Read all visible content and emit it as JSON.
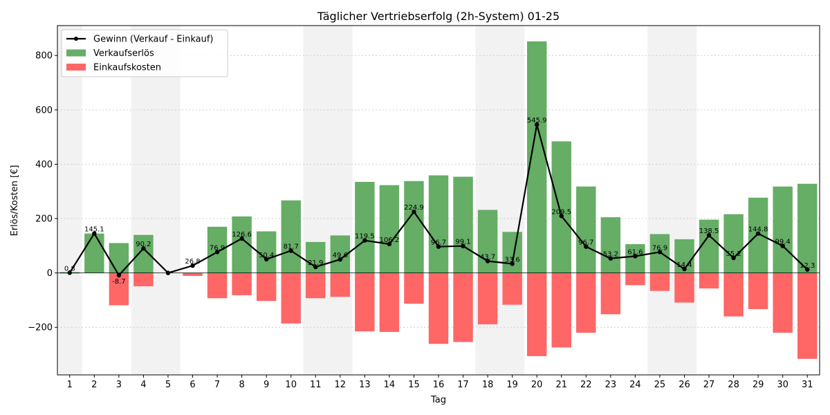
{
  "colors": {
    "revenue": "#66ad66",
    "cost": "#ff6666",
    "profit": "#000000",
    "weekend": "#e6e6e6"
  },
  "chart_data": {
    "type": "bar",
    "title": "Täglicher Vertriebserfolg (2h-System) 01-25",
    "xlabel": "Tag",
    "ylabel": "Erlös/Kosten [€]",
    "ylim": [
      -375,
      910
    ],
    "yticks": [
      -200,
      0,
      200,
      400,
      600,
      800
    ],
    "ytick_labels": [
      "−200",
      "0",
      "200",
      "400",
      "600",
      "800"
    ],
    "grid": "y-dotted",
    "legend_position": "top-left",
    "categories": [
      "1",
      "2",
      "3",
      "4",
      "5",
      "6",
      "7",
      "8",
      "9",
      "10",
      "11",
      "12",
      "13",
      "14",
      "15",
      "16",
      "17",
      "18",
      "19",
      "20",
      "21",
      "22",
      "23",
      "24",
      "25",
      "26",
      "27",
      "28",
      "29",
      "30",
      "31"
    ],
    "weekend_days": [
      1,
      4,
      5,
      11,
      12,
      18,
      19,
      25,
      26
    ],
    "series": [
      {
        "name": "Verkaufserlös",
        "kind": "bar",
        "values": [
          3,
          145,
          110,
          140,
          0,
          0,
          170,
          208,
          153,
          267,
          114,
          138,
          335,
          323,
          338,
          359,
          354,
          232,
          151,
          852,
          484,
          318,
          205,
          106,
          143,
          124,
          196,
          216,
          277,
          318,
          328
        ]
      },
      {
        "name": "Einkaufskosten",
        "kind": "bar",
        "values": [
          -2,
          0,
          -119,
          -49,
          0,
          -11,
          -93,
          -82,
          -103,
          -186,
          -93,
          -88,
          -215,
          -217,
          -113,
          -261,
          -254,
          -189,
          -117,
          -306,
          -274,
          -220,
          -152,
          -45,
          -66,
          -109,
          -57,
          -160,
          -133,
          -220,
          -316
        ]
      },
      {
        "name": "Gewinn (Verkauf - Einkauf)",
        "kind": "line",
        "values": [
          0.8,
          145.1,
          -8.7,
          90.2,
          0,
          26.8,
          76.9,
          126.6,
          50.4,
          81.7,
          21.9,
          49.6,
          119.5,
          106.2,
          224.9,
          96.7,
          99.1,
          43.7,
          33.6,
          545.9,
          209.5,
          96.7,
          53.2,
          61.6,
          76.9,
          14.4,
          138.5,
          55.2,
          144.8,
          99.4,
          12.3
        ]
      }
    ],
    "data_labels": [
      "0.8",
      "145.1",
      "-8.7",
      "90.2",
      "",
      "26.8",
      "76.9",
      "126.6",
      "50.4",
      "81.7",
      "21.9",
      "49.6",
      "119.5",
      "106.2",
      "224.9",
      "96.7",
      "99.1",
      "43.7",
      "33.6",
      "545.9",
      "209.5",
      "96.7",
      "53.2",
      "61.6",
      "76.9",
      "14.4",
      "138.5",
      "55.2",
      "144.8",
      "99.4",
      "12.3"
    ],
    "legend": [
      {
        "label": "Gewinn (Verkauf - Einkauf)",
        "kind": "line"
      },
      {
        "label": "Verkaufserlös",
        "kind": "revenue"
      },
      {
        "label": "Einkaufskosten",
        "kind": "cost"
      }
    ]
  }
}
